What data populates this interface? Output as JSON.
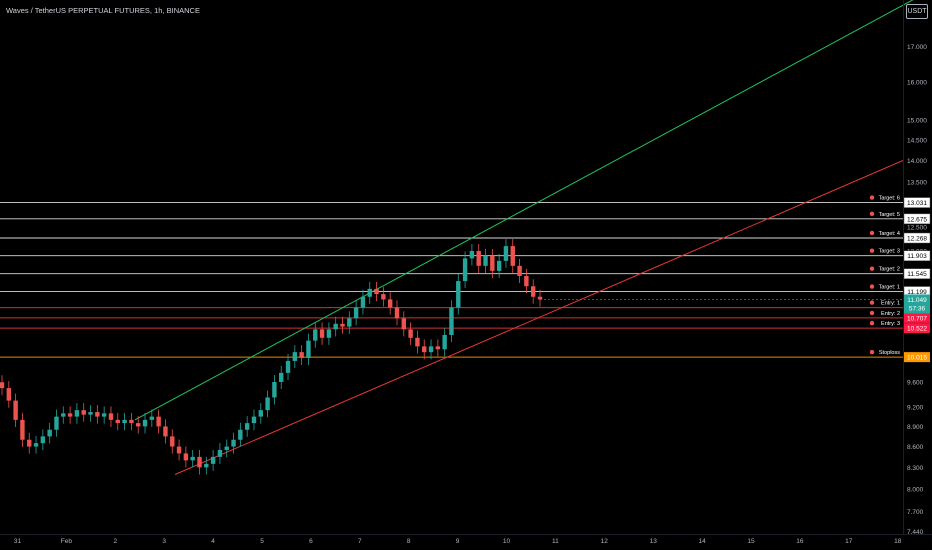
{
  "header": {
    "title": "Waves / TetherUS PERPETUAL FUTURES, 1h, BINANCE",
    "currency": "USDT"
  },
  "chart_data": {
    "type": "candlestick",
    "title": "Waves / TetherUS PERPETUAL FUTURES, 1h, BINANCE",
    "y_scale": "log",
    "ylim": [
      7.2,
      18.4
    ],
    "y_ticks": [
      "17.000",
      "16.000",
      "15.000",
      "14.500",
      "14.000",
      "13.500",
      "13.000",
      "12.500",
      "12.000",
      "9.600",
      "9.200",
      "8.900",
      "8.600",
      "8.300",
      "8.000",
      "7.700",
      "7.440"
    ],
    "x_ticks": [
      "31",
      "Feb",
      "2",
      "3",
      "4",
      "5",
      "6",
      "7",
      "8",
      "9",
      "10",
      "11",
      "12",
      "13",
      "14",
      "15",
      "16",
      "17",
      "18"
    ],
    "current_price": "11.049",
    "countdown": "57:36",
    "levels": [
      {
        "label": "Target: 6",
        "value": "13.031",
        "kind": "target"
      },
      {
        "label": "Target: 5",
        "value": "12.675",
        "kind": "target"
      },
      {
        "label": "Target: 4",
        "value": "12.268",
        "kind": "target"
      },
      {
        "label": "Target: 3",
        "value": "11.903",
        "kind": "target"
      },
      {
        "label": "Target: 2",
        "value": "11.545",
        "kind": "target"
      },
      {
        "label": "Target: 1",
        "value": "11.199",
        "kind": "target"
      },
      {
        "label": "Entry: 1",
        "value": "10.897",
        "kind": "entry"
      },
      {
        "label": "Entry: 2",
        "value": "10.707",
        "kind": "entry"
      },
      {
        "label": "Entry: 3",
        "value": "10.522",
        "kind": "entry"
      },
      {
        "label": "Stoploss",
        "value": "10.015",
        "kind": "stop"
      }
    ],
    "trendlines": [
      {
        "name": "upper channel",
        "color": "#22c55e"
      },
      {
        "name": "lower channel",
        "color": "#e53935"
      }
    ],
    "path_close": [
      9.5,
      9.3,
      9.0,
      8.7,
      8.6,
      8.65,
      8.75,
      8.85,
      9.05,
      9.1,
      9.05,
      9.15,
      9.08,
      9.12,
      9.05,
      9.1,
      9.0,
      8.95,
      9.0,
      8.95,
      8.9,
      9.0,
      9.05,
      8.9,
      8.75,
      8.6,
      8.5,
      8.4,
      8.45,
      8.3,
      8.35,
      8.45,
      8.55,
      8.6,
      8.7,
      8.85,
      8.95,
      9.05,
      9.15,
      9.35,
      9.6,
      9.75,
      9.95,
      10.1,
      10.0,
      10.3,
      10.5,
      10.35,
      10.5,
      10.6,
      10.55,
      10.7,
      10.9,
      11.1,
      11.25,
      11.15,
      11.05,
      10.9,
      10.7,
      10.5,
      10.35,
      10.2,
      10.1,
      10.2,
      10.15,
      10.4,
      10.9,
      11.4,
      11.85,
      12.0,
      11.7,
      11.9,
      11.6,
      11.8,
      12.1,
      11.7,
      11.5,
      11.3,
      11.1,
      11.05
    ],
    "colors": {
      "up": "#26a69a",
      "down": "#ef5350",
      "target": "#ffffff",
      "entry": "#e53935",
      "stop": "#ff9800"
    }
  }
}
